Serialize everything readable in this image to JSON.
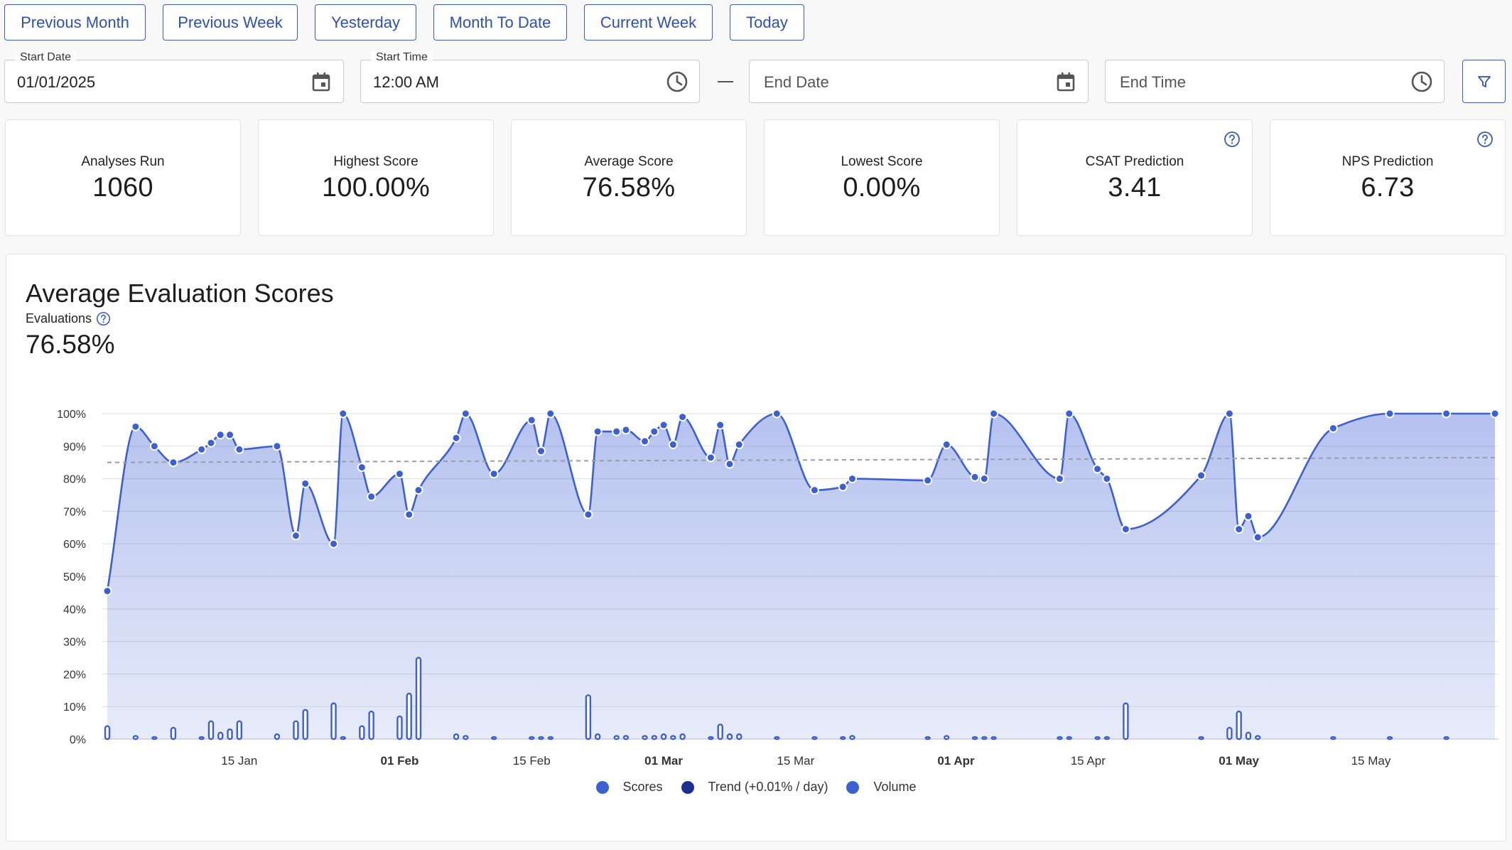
{
  "quick_ranges": [
    "Previous Month",
    "Previous Week",
    "Yesterday",
    "Month To Date",
    "Current Week",
    "Today"
  ],
  "filters": {
    "start_date_label": "Start Date",
    "start_date_value": "01/01/2025",
    "start_time_label": "Start Time",
    "start_time_value": "12:00 AM",
    "end_date_placeholder": "End Date",
    "end_time_placeholder": "End Time",
    "filter_icon": "filter-icon"
  },
  "stats": [
    {
      "label": "Analyses Run",
      "value": "1060"
    },
    {
      "label": "Highest Score",
      "value": "100.00%"
    },
    {
      "label": "Average Score",
      "value": "76.58%"
    },
    {
      "label": "Lowest Score",
      "value": "0.00%"
    },
    {
      "label": "CSAT Prediction",
      "value": "3.41"
    },
    {
      "label": "NPS Prediction",
      "value": "6.73"
    }
  ],
  "panel": {
    "title": "Average Evaluation Scores",
    "subtitle": "Evaluations",
    "value": "76.58%"
  },
  "colors": {
    "accent": "#3b5bc0",
    "series": "#3d5fd4",
    "trend": "#1d2f8f",
    "volume": "#3d5fd4"
  },
  "chart_data": {
    "type": "area",
    "ylim": [
      0,
      100
    ],
    "y_ticks": [
      "0%",
      "10%",
      "20%",
      "30%",
      "40%",
      "50%",
      "60%",
      "70%",
      "80%",
      "90%",
      "100%"
    ],
    "x_domain": [
      "2025-01-01",
      "2025-05-28"
    ],
    "x_ticks": [
      {
        "label": "15 Jan",
        "date": "2025-01-15",
        "bold": false
      },
      {
        "label": "01 Feb",
        "date": "2025-02-01",
        "bold": true
      },
      {
        "label": "15 Feb",
        "date": "2025-02-15",
        "bold": false
      },
      {
        "label": "01 Mar",
        "date": "2025-03-01",
        "bold": true
      },
      {
        "label": "15 Mar",
        "date": "2025-03-15",
        "bold": false
      },
      {
        "label": "01 Apr",
        "date": "2025-04-01",
        "bold": true
      },
      {
        "label": "15 Apr",
        "date": "2025-04-15",
        "bold": false
      },
      {
        "label": "01 May",
        "date": "2025-05-01",
        "bold": true
      },
      {
        "label": "15 May",
        "date": "2025-05-15",
        "bold": false
      }
    ],
    "legend": [
      "Scores",
      "Trend (+0.01% / day)",
      "Volume"
    ],
    "scores": [
      [
        "2025-01-01",
        45.5
      ],
      [
        "2025-01-04",
        96
      ],
      [
        "2025-01-06",
        90
      ],
      [
        "2025-01-08",
        85
      ],
      [
        "2025-01-11",
        89
      ],
      [
        "2025-01-12",
        91
      ],
      [
        "2025-01-13",
        93.5
      ],
      [
        "2025-01-14",
        93.5
      ],
      [
        "2025-01-15",
        89
      ],
      [
        "2025-01-19",
        90
      ],
      [
        "2025-01-21",
        62.5
      ],
      [
        "2025-01-22",
        78.5
      ],
      [
        "2025-01-25",
        60
      ],
      [
        "2025-01-26",
        100
      ],
      [
        "2025-01-28",
        83.5
      ],
      [
        "2025-01-29",
        74.5
      ],
      [
        "2025-02-01",
        81.5
      ],
      [
        "2025-02-02",
        69
      ],
      [
        "2025-02-03",
        76.5
      ],
      [
        "2025-02-07",
        92.5
      ],
      [
        "2025-02-08",
        100
      ],
      [
        "2025-02-11",
        81.5
      ],
      [
        "2025-02-15",
        98
      ],
      [
        "2025-02-16",
        88.5
      ],
      [
        "2025-02-17",
        100
      ],
      [
        "2025-02-21",
        69
      ],
      [
        "2025-02-22",
        94.5
      ],
      [
        "2025-02-24",
        94.5
      ],
      [
        "2025-02-25",
        95
      ],
      [
        "2025-02-27",
        91.5
      ],
      [
        "2025-02-28",
        94.5
      ],
      [
        "2025-03-01",
        96.5
      ],
      [
        "2025-03-02",
        90.5
      ],
      [
        "2025-03-03",
        99
      ],
      [
        "2025-03-06",
        86.5
      ],
      [
        "2025-03-07",
        96.5
      ],
      [
        "2025-03-08",
        84.5
      ],
      [
        "2025-03-09",
        90.5
      ],
      [
        "2025-03-13",
        100
      ],
      [
        "2025-03-17",
        76.5
      ],
      [
        "2025-03-20",
        77.5
      ],
      [
        "2025-03-21",
        80
      ],
      [
        "2025-03-29",
        79.5
      ],
      [
        "2025-03-31",
        90.5
      ],
      [
        "2025-04-03",
        80.5
      ],
      [
        "2025-04-04",
        80
      ],
      [
        "2025-04-05",
        100
      ],
      [
        "2025-04-12",
        80
      ],
      [
        "2025-04-13",
        100
      ],
      [
        "2025-04-16",
        83
      ],
      [
        "2025-04-17",
        80
      ],
      [
        "2025-04-19",
        64.5
      ],
      [
        "2025-04-27",
        81
      ],
      [
        "2025-04-30",
        100
      ],
      [
        "2025-05-01",
        64.5
      ],
      [
        "2025-05-02",
        68.5
      ],
      [
        "2025-05-03",
        62
      ],
      [
        "2025-05-11",
        95.5
      ],
      [
        "2025-05-17",
        100
      ],
      [
        "2025-05-23",
        100
      ]
    ],
    "trend": [
      [
        "2025-01-01",
        85
      ],
      [
        "2025-05-23",
        86.5
      ]
    ],
    "volume": [
      [
        "2025-01-01",
        4
      ],
      [
        "2025-01-04",
        1
      ],
      [
        "2025-01-06",
        0.5
      ],
      [
        "2025-01-08",
        3.5
      ],
      [
        "2025-01-11",
        0.5
      ],
      [
        "2025-01-12",
        5.5
      ],
      [
        "2025-01-13",
        2
      ],
      [
        "2025-01-14",
        3
      ],
      [
        "2025-01-15",
        5.5
      ],
      [
        "2025-01-19",
        1.5
      ],
      [
        "2025-01-21",
        5.5
      ],
      [
        "2025-01-22",
        9
      ],
      [
        "2025-01-25",
        11
      ],
      [
        "2025-01-26",
        0.3
      ],
      [
        "2025-01-28",
        4
      ],
      [
        "2025-01-29",
        8.5
      ],
      [
        "2025-02-01",
        7
      ],
      [
        "2025-02-02",
        14
      ],
      [
        "2025-02-03",
        25
      ],
      [
        "2025-02-07",
        1.5
      ],
      [
        "2025-02-08",
        1
      ],
      [
        "2025-02-11",
        0.3
      ],
      [
        "2025-02-15",
        0.5
      ],
      [
        "2025-02-16",
        0.5
      ],
      [
        "2025-02-17",
        0.5
      ],
      [
        "2025-02-21",
        13.5
      ],
      [
        "2025-02-22",
        1.5
      ],
      [
        "2025-02-24",
        1
      ],
      [
        "2025-02-25",
        1
      ],
      [
        "2025-02-27",
        1
      ],
      [
        "2025-02-28",
        1
      ],
      [
        "2025-03-01",
        1.5
      ],
      [
        "2025-03-02",
        1
      ],
      [
        "2025-03-03",
        1.5
      ],
      [
        "2025-03-06",
        0.5
      ],
      [
        "2025-03-07",
        4.5
      ],
      [
        "2025-03-08",
        1.5
      ],
      [
        "2025-03-09",
        1.5
      ],
      [
        "2025-03-13",
        0.3
      ],
      [
        "2025-03-17",
        0.3
      ],
      [
        "2025-03-20",
        0.3
      ],
      [
        "2025-03-21",
        1
      ],
      [
        "2025-03-29",
        0.3
      ],
      [
        "2025-03-31",
        1
      ],
      [
        "2025-04-03",
        0.3
      ],
      [
        "2025-04-04",
        0.3
      ],
      [
        "2025-04-05",
        0.3
      ],
      [
        "2025-04-12",
        0.3
      ],
      [
        "2025-04-13",
        0.3
      ],
      [
        "2025-04-16",
        0.5
      ],
      [
        "2025-04-17",
        0.5
      ],
      [
        "2025-04-19",
        11
      ],
      [
        "2025-04-27",
        0.3
      ],
      [
        "2025-04-30",
        3.5
      ],
      [
        "2025-05-01",
        8.5
      ],
      [
        "2025-05-02",
        2
      ],
      [
        "2025-05-03",
        1
      ],
      [
        "2025-05-11",
        0.3
      ],
      [
        "2025-05-17",
        0.3
      ],
      [
        "2025-05-23",
        0.3
      ]
    ]
  }
}
